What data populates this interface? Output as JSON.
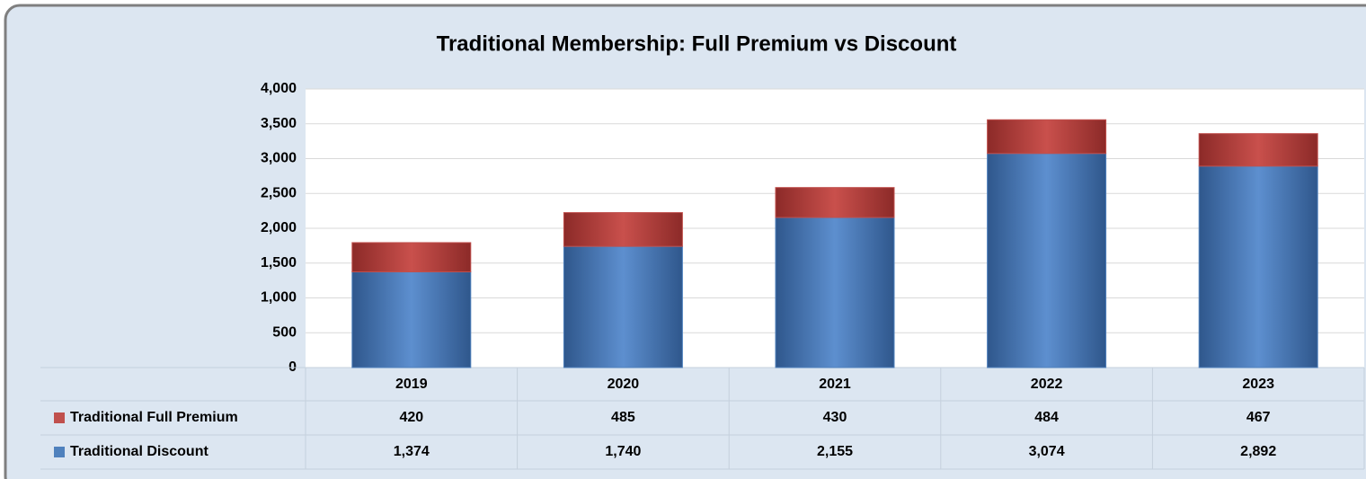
{
  "chart_data": {
    "type": "bar",
    "stacked": true,
    "title": "Traditional Membership:  Full Premium vs Discount",
    "categories": [
      "2019",
      "2020",
      "2021",
      "2022",
      "2023"
    ],
    "series": [
      {
        "name": "Traditional Full Premium",
        "color": "#c0504d",
        "values": [
          420,
          485,
          430,
          484,
          467
        ]
      },
      {
        "name": "Traditional Discount",
        "color": "#4f81bd",
        "values": [
          1374,
          1740,
          2155,
          3074,
          2892
        ],
        "value_labels": [
          "1,374",
          "1,740",
          "2,155",
          "3,074",
          "2,892"
        ]
      }
    ],
    "ylim": [
      0,
      4000
    ],
    "yticks": [
      0,
      500,
      {
        "value": 1000,
        "label": "1,000"
      },
      {
        "value": 1500,
        "label": "1,500"
      },
      {
        "value": 2000,
        "label": "2,000"
      },
      {
        "value": 2500,
        "label": "2,500"
      },
      {
        "value": 3000,
        "label": "3,000"
      },
      {
        "value": 3500,
        "label": "3,500"
      },
      {
        "value": 4000,
        "label": "4,000"
      }
    ],
    "grid": true,
    "data_table": true
  }
}
